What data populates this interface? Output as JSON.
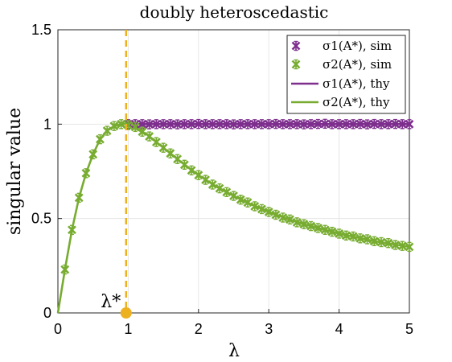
{
  "chart_data": {
    "type": "line",
    "title": "doubly heteroscedastic",
    "xlabel": "λ",
    "ylabel": "singular value",
    "xlim": [
      0,
      5
    ],
    "ylim": [
      0,
      1.5
    ],
    "xticks": [
      "0",
      "1",
      "2",
      "3",
      "4",
      "5"
    ],
    "yticks": [
      "0",
      "0.5",
      "1",
      "1.5"
    ],
    "grid": true,
    "legend_position": "top-right",
    "lambda_star": 0.97,
    "lambda_star_label": "λ*",
    "colors": {
      "sigma1": "#7e2f8e",
      "sigma2": "#77ac30",
      "threshold": "#edb120"
    },
    "series": [
      {
        "name": "σ1(A*), sim",
        "style": "markers-errorbar",
        "x": [
          1.0,
          1.1,
          1.2,
          1.3,
          1.4,
          1.5,
          1.6,
          1.7,
          1.8,
          1.9,
          2.0,
          2.1,
          2.2,
          2.3,
          2.4,
          2.5,
          2.6,
          2.7,
          2.8,
          2.9,
          3.0,
          3.1,
          3.2,
          3.3,
          3.4,
          3.5,
          3.6,
          3.7,
          3.8,
          3.9,
          4.0,
          4.1,
          4.2,
          4.3,
          4.4,
          4.5,
          4.6,
          4.7,
          4.8,
          4.9,
          5.0
        ],
        "y": [
          1.0,
          1.0,
          1.0,
          0.999,
          1.0,
          1.0,
          1.0,
          0.999,
          1.0,
          1.0,
          1.001,
          1.0,
          1.0,
          1.0,
          1.0,
          0.999,
          1.0,
          1.0,
          1.0,
          1.0,
          1.0,
          1.001,
          1.0,
          1.0,
          1.0,
          0.999,
          1.0,
          1.001,
          1.002,
          1.0,
          1.0,
          1.0,
          1.0,
          1.001,
          0.999,
          1.001,
          1.0,
          1.0,
          1.001,
          1.0,
          1.0
        ]
      },
      {
        "name": "σ2(A*), sim",
        "style": "markers-errorbar",
        "x": [
          0.1,
          0.2,
          0.3,
          0.4,
          0.5,
          0.6,
          0.7,
          0.8,
          0.9,
          1.0,
          1.1,
          1.2,
          1.3,
          1.4,
          1.5,
          1.6,
          1.7,
          1.8,
          1.9,
          2.0,
          2.1,
          2.2,
          2.3,
          2.4,
          2.5,
          2.6,
          2.7,
          2.8,
          2.9,
          3.0,
          3.1,
          3.2,
          3.3,
          3.4,
          3.5,
          3.6,
          3.7,
          3.8,
          3.9,
          4.0,
          4.1,
          4.2,
          4.3,
          4.4,
          4.5,
          4.6,
          4.7,
          4.8,
          4.9,
          5.0
        ],
        "y": [
          0.23,
          0.44,
          0.61,
          0.74,
          0.84,
          0.92,
          0.965,
          0.99,
          1.0,
          0.995,
          0.985,
          0.96,
          0.935,
          0.905,
          0.875,
          0.845,
          0.815,
          0.785,
          0.755,
          0.73,
          0.705,
          0.68,
          0.66,
          0.64,
          0.62,
          0.6,
          0.585,
          0.565,
          0.55,
          0.535,
          0.52,
          0.505,
          0.495,
          0.48,
          0.47,
          0.46,
          0.45,
          0.44,
          0.43,
          0.42,
          0.41,
          0.405,
          0.395,
          0.39,
          0.38,
          0.375,
          0.37,
          0.36,
          0.355,
          0.35
        ]
      },
      {
        "name": "σ1(A*), thy",
        "style": "line",
        "x": [
          0.97,
          5.0
        ],
        "y": [
          1.0,
          1.0
        ]
      },
      {
        "name": "σ2(A*), thy",
        "style": "line",
        "x": [
          0,
          0.1,
          0.2,
          0.3,
          0.4,
          0.5,
          0.6,
          0.7,
          0.8,
          0.9,
          0.97,
          1.0,
          1.25,
          1.5,
          1.75,
          2.0,
          2.25,
          2.5,
          2.75,
          3.0,
          3.25,
          3.5,
          3.75,
          4.0,
          4.25,
          4.5,
          4.75,
          5.0
        ],
        "y": [
          0,
          0.23,
          0.44,
          0.61,
          0.74,
          0.84,
          0.92,
          0.965,
          0.99,
          1.0,
          1.0,
          0.995,
          0.95,
          0.875,
          0.8,
          0.73,
          0.67,
          0.62,
          0.575,
          0.535,
          0.5,
          0.47,
          0.445,
          0.42,
          0.4,
          0.38,
          0.365,
          0.35
        ]
      }
    ]
  }
}
